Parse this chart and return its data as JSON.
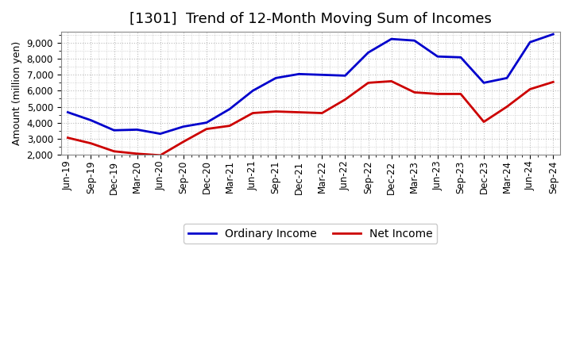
{
  "title": "[1301]  Trend of 12-Month Moving Sum of Incomes",
  "ylabel": "Amount (million yen)",
  "background_color": "#ffffff",
  "plot_bg_color": "#ffffff",
  "grid_color": "#bbbbbb",
  "ordinary_income_color": "#0000cc",
  "net_income_color": "#cc0000",
  "ordinary_income_label": "Ordinary Income",
  "net_income_label": "Net Income",
  "x_labels": [
    "Jun-19",
    "Sep-19",
    "Dec-19",
    "Mar-20",
    "Jun-20",
    "Sep-20",
    "Dec-20",
    "Mar-21",
    "Jun-21",
    "Sep-21",
    "Dec-21",
    "Mar-22",
    "Jun-22",
    "Sep-22",
    "Dec-22",
    "Mar-23",
    "Jun-23",
    "Sep-23",
    "Dec-23",
    "Mar-24",
    "Jun-24",
    "Sep-24"
  ],
  "ordinary_income": [
    4650,
    4150,
    3520,
    3560,
    3300,
    3750,
    4000,
    4850,
    6000,
    6800,
    7050,
    7000,
    6950,
    8400,
    9250,
    9150,
    8150,
    8100,
    6500,
    6800,
    9050,
    9550
  ],
  "net_income": [
    3050,
    2700,
    2200,
    2050,
    1950,
    2800,
    3600,
    3800,
    4600,
    4700,
    4650,
    4600,
    5450,
    6500,
    6600,
    5900,
    5800,
    5800,
    4050,
    5000,
    6100,
    6550
  ],
  "ylim_min": 2000,
  "ylim_max": 9700,
  "yticks": [
    2000,
    3000,
    4000,
    5000,
    6000,
    7000,
    8000,
    9000
  ],
  "line_width": 2.0,
  "title_fontsize": 13,
  "ylabel_fontsize": 9,
  "legend_fontsize": 10,
  "tick_fontsize": 8.5
}
